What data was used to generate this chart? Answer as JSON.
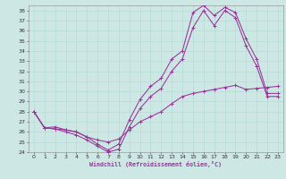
{
  "xlabel": "Windchill (Refroidissement éolien,°C)",
  "xlim": [
    -0.5,
    23.5
  ],
  "ylim": [
    24,
    38.5
  ],
  "xticks": [
    0,
    1,
    2,
    3,
    4,
    5,
    6,
    7,
    8,
    9,
    10,
    11,
    12,
    13,
    14,
    15,
    16,
    17,
    18,
    19,
    20,
    21,
    22,
    23
  ],
  "yticks": [
    24,
    25,
    26,
    27,
    28,
    29,
    30,
    31,
    32,
    33,
    34,
    35,
    36,
    37,
    38
  ],
  "bg_color": "#cde8e4",
  "line_color": "#993399",
  "grid_color": "#b0d8d0",
  "line1_x": [
    0,
    1,
    2,
    3,
    4,
    5,
    6,
    7,
    8,
    9,
    10,
    11,
    12,
    13,
    14,
    15,
    16,
    17,
    18,
    19,
    20,
    21,
    22,
    23
  ],
  "line1_y": [
    28.0,
    26.4,
    26.5,
    26.2,
    26.0,
    25.5,
    24.8,
    24.2,
    24.8,
    27.2,
    29.2,
    30.5,
    31.3,
    33.2,
    34.0,
    37.8,
    38.5,
    37.5,
    38.3,
    37.8,
    35.2,
    33.2,
    29.8,
    29.8
  ],
  "line2_x": [
    0,
    1,
    2,
    3,
    4,
    5,
    6,
    7,
    8,
    9,
    10,
    11,
    12,
    13,
    14,
    15,
    16,
    17,
    18,
    19,
    20,
    21,
    22,
    23
  ],
  "line2_y": [
    28.0,
    26.4,
    26.3,
    26.0,
    25.7,
    25.2,
    24.6,
    24.0,
    24.3,
    26.5,
    28.3,
    29.5,
    30.3,
    32.0,
    33.2,
    36.3,
    38.0,
    36.5,
    38.0,
    37.3,
    34.5,
    32.5,
    29.5,
    29.5
  ],
  "line3_x": [
    0,
    1,
    2,
    3,
    4,
    5,
    6,
    7,
    8,
    9,
    10,
    11,
    12,
    13,
    14,
    15,
    16,
    17,
    18,
    19,
    20,
    21,
    22,
    23
  ],
  "line3_y": [
    28.0,
    26.4,
    26.3,
    26.2,
    26.0,
    25.5,
    25.2,
    25.0,
    25.3,
    26.2,
    27.0,
    27.5,
    28.0,
    28.8,
    29.5,
    29.8,
    30.0,
    30.2,
    30.4,
    30.6,
    30.2,
    30.3,
    30.4,
    30.5
  ]
}
